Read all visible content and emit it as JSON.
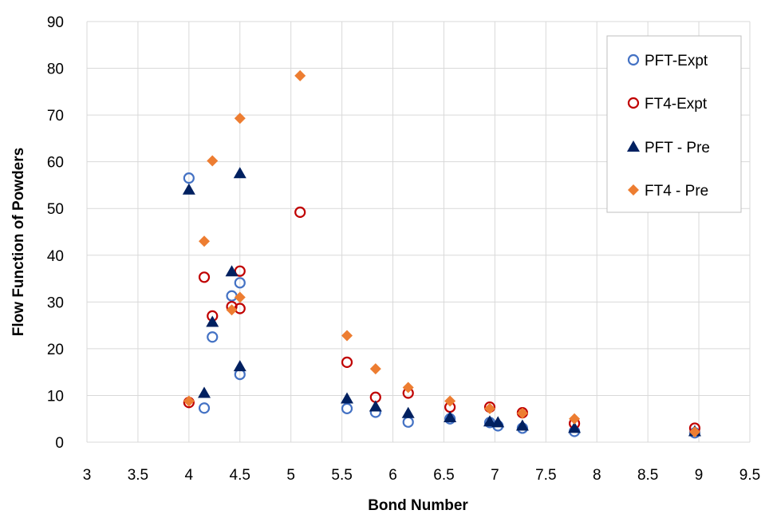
{
  "chart_data": {
    "type": "scatter",
    "xlabel": "Bond Number",
    "ylabel": "Flow Function of Powders",
    "xlim": [
      3,
      9.5
    ],
    "ylim": [
      0,
      90
    ],
    "x_ticks": [
      "3",
      "3.5",
      "4",
      "4.5",
      "5",
      "5.5",
      "6",
      "6.5",
      "7",
      "7.5",
      "8",
      "8.5",
      "9",
      "9.5"
    ],
    "y_ticks": [
      "0",
      "10",
      "20",
      "30",
      "40",
      "50",
      "60",
      "70",
      "80",
      "90"
    ],
    "grid": "vertical and horizontal",
    "legend_position": "top-right",
    "series": [
      {
        "name": "PFT-Expt",
        "marker": "open-circle",
        "color": "#4472C4",
        "points": [
          [
            4.0,
            56.5
          ],
          [
            4.15,
            7.3
          ],
          [
            4.23,
            22.5
          ],
          [
            4.42,
            31.3
          ],
          [
            4.5,
            34.1
          ],
          [
            4.5,
            14.5
          ],
          [
            5.55,
            7.2
          ],
          [
            5.83,
            6.4
          ],
          [
            6.15,
            4.3
          ],
          [
            6.56,
            5.0
          ],
          [
            6.95,
            4.2
          ],
          [
            7.03,
            3.5
          ],
          [
            7.27,
            3.0
          ],
          [
            7.78,
            2.3
          ],
          [
            8.96,
            2.0
          ]
        ]
      },
      {
        "name": "FT4-Expt",
        "marker": "open-circle",
        "color": "#C00000",
        "points": [
          [
            4.0,
            8.5
          ],
          [
            4.15,
            35.3
          ],
          [
            4.23,
            27.0
          ],
          [
            4.42,
            29.0
          ],
          [
            4.5,
            36.6
          ],
          [
            4.5,
            28.6
          ],
          [
            5.09,
            49.2
          ],
          [
            5.55,
            17.1
          ],
          [
            5.83,
            9.6
          ],
          [
            6.15,
            10.5
          ],
          [
            6.56,
            7.5
          ],
          [
            6.95,
            7.5
          ],
          [
            7.27,
            6.3
          ],
          [
            7.78,
            4.0
          ],
          [
            8.96,
            3.0
          ]
        ]
      },
      {
        "name": "PFT - Pre",
        "marker": "filled-triangle",
        "color": "#002060",
        "points": [
          [
            4.0,
            54.0
          ],
          [
            4.15,
            10.5
          ],
          [
            4.23,
            25.7
          ],
          [
            4.42,
            36.5
          ],
          [
            4.5,
            57.5
          ],
          [
            4.5,
            16.2
          ],
          [
            5.55,
            9.3
          ],
          [
            5.83,
            7.6
          ],
          [
            6.15,
            6.2
          ],
          [
            6.56,
            5.3
          ],
          [
            6.95,
            4.4
          ],
          [
            7.03,
            4.2
          ],
          [
            7.27,
            3.5
          ],
          [
            7.78,
            3.0
          ],
          [
            8.96,
            2.3
          ]
        ]
      },
      {
        "name": "FT4 - Pre",
        "marker": "filled-diamond",
        "color": "#ED7D31",
        "points": [
          [
            4.0,
            8.8
          ],
          [
            4.15,
            43.0
          ],
          [
            4.23,
            60.2
          ],
          [
            4.42,
            28.3
          ],
          [
            4.5,
            69.3
          ],
          [
            4.5,
            31.0
          ],
          [
            5.09,
            78.4
          ],
          [
            5.55,
            22.8
          ],
          [
            5.83,
            15.7
          ],
          [
            6.15,
            11.7
          ],
          [
            6.56,
            8.8
          ],
          [
            6.95,
            7.2
          ],
          [
            7.27,
            6.2
          ],
          [
            7.78,
            5.0
          ],
          [
            8.96,
            2.2
          ]
        ]
      }
    ]
  }
}
